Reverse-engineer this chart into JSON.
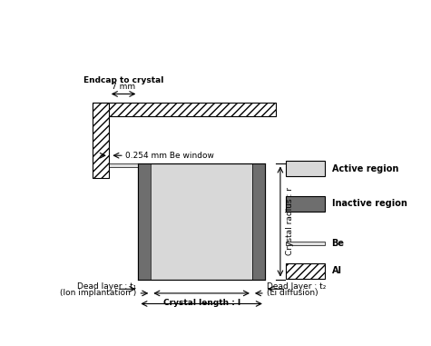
{
  "figure_width": 4.75,
  "figure_height": 3.81,
  "dpi": 100,
  "bg_color": "#ffffff",
  "active_color": "#d8d8d8",
  "inactive_color": "#6e6e6e",
  "be_color": "#e8e8e8",
  "labels": {
    "endcap": "Endcap to crystal",
    "endcap_dim": "7 mm",
    "be_window": "0.254 mm Be window",
    "crystal_radius": "Crystal radius : r",
    "crystal_length": "Crystal length : l",
    "dead_left": "Dead layer : t₁",
    "dead_left_sub": "(Ion implantation )",
    "dead_right": "Dead layer : t₂",
    "dead_right_sub": "(Li diffusion)",
    "active": "Active region",
    "inactive": "Inactive region",
    "be_legend": "Be",
    "al_legend": "Al"
  }
}
